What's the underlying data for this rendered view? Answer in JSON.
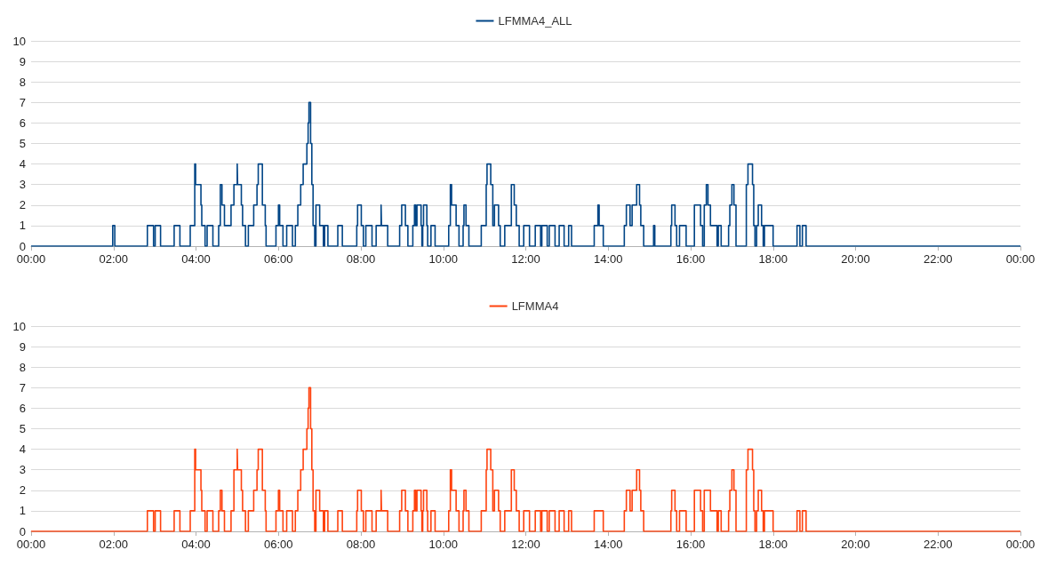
{
  "chart_data": [
    {
      "type": "step",
      "legend": "top",
      "grid": "y",
      "xlim": [
        0,
        24
      ],
      "ylim": [
        0,
        10
      ],
      "yticks": [
        0,
        1,
        2,
        3,
        4,
        5,
        6,
        7,
        8,
        9,
        10
      ],
      "xticks": [
        {
          "value": 0,
          "label": "00:00"
        },
        {
          "value": 2,
          "label": "02:00"
        },
        {
          "value": 4,
          "label": "04:00"
        },
        {
          "value": 6,
          "label": "06:00"
        },
        {
          "value": 8,
          "label": "08:00"
        },
        {
          "value": 10,
          "label": "10:00"
        },
        {
          "value": 12,
          "label": "12:00"
        },
        {
          "value": 14,
          "label": "14:00"
        },
        {
          "value": 16,
          "label": "16:00"
        },
        {
          "value": 18,
          "label": "18:00"
        },
        {
          "value": 20,
          "label": "20:00"
        },
        {
          "value": 22,
          "label": "22:00"
        },
        {
          "value": 24,
          "label": "00:00"
        }
      ],
      "x": [
        0,
        1.98,
        2.03,
        2.82,
        2.97,
        3.01,
        3.14,
        3.47,
        3.61,
        3.86,
        3.97,
        3.99,
        4.12,
        4.14,
        4.22,
        4.27,
        4.41,
        4.55,
        4.59,
        4.63,
        4.69,
        4.85,
        4.92,
        5.0,
        5.01,
        5.1,
        5.13,
        5.2,
        5.27,
        5.4,
        5.48,
        5.51,
        5.61,
        5.68,
        5.7,
        5.94,
        6.0,
        6.03,
        6.11,
        6.2,
        6.34,
        6.41,
        6.47,
        6.54,
        6.6,
        6.69,
        6.72,
        6.74,
        6.78,
        6.81,
        6.84,
        6.88,
        6.91,
        7.0,
        7.09,
        7.12,
        7.2,
        7.44,
        7.55,
        7.9,
        7.92,
        8.01,
        8.06,
        8.12,
        8.27,
        8.37,
        8.49,
        8.5,
        8.65,
        8.94,
        8.99,
        9.08,
        9.14,
        9.26,
        9.3,
        9.33,
        9.36,
        9.46,
        9.48,
        9.5,
        9.52,
        9.6,
        9.62,
        9.7,
        9.8,
        10.13,
        10.17,
        10.2,
        10.31,
        10.38,
        10.48,
        10.5,
        10.55,
        10.62,
        10.92,
        11.04,
        11.06,
        11.15,
        11.2,
        11.24,
        11.34,
        11.38,
        11.49,
        11.65,
        11.72,
        11.77,
        11.84,
        11.95,
        12.09,
        12.23,
        12.36,
        12.39,
        12.52,
        12.57,
        12.71,
        12.81,
        12.93,
        13.04,
        13.11,
        13.66,
        13.75,
        13.78,
        13.88,
        14.39,
        14.44,
        14.53,
        14.58,
        14.69,
        14.76,
        14.79,
        14.86,
        15.1,
        15.13,
        15.52,
        15.54,
        15.62,
        15.66,
        15.73,
        15.89,
        16.09,
        16.24,
        16.29,
        16.33,
        16.38,
        16.42,
        16.48,
        16.64,
        16.67,
        16.74,
        16.92,
        16.95,
        17.0,
        17.05,
        17.1,
        17.35,
        17.39,
        17.5,
        17.53,
        17.56,
        17.6,
        17.64,
        17.72,
        17.76,
        17.79,
        18.0,
        18.58,
        18.65,
        18.71,
        18.8,
        24
      ],
      "series": [
        {
          "name": "LFMMA4_ALL",
          "color": "#004586",
          "values": [
            0,
            1,
            0,
            1,
            0,
            1,
            0,
            1,
            0,
            1,
            4,
            3,
            2,
            1,
            0,
            1,
            0,
            1,
            3,
            2,
            1,
            2,
            3,
            4,
            3,
            2,
            1,
            0,
            1,
            2,
            3,
            4,
            2,
            1,
            0,
            1,
            2,
            1,
            0,
            1,
            0,
            1,
            2,
            3,
            4,
            5,
            6,
            7,
            5,
            3,
            1,
            0,
            2,
            1,
            0,
            1,
            0,
            1,
            0,
            1,
            2,
            1,
            0,
            1,
            0,
            1,
            2,
            1,
            0,
            1,
            2,
            1,
            0,
            1,
            2,
            1,
            2,
            1,
            0,
            1,
            2,
            1,
            0,
            1,
            0,
            1,
            3,
            2,
            1,
            0,
            1,
            2,
            1,
            0,
            1,
            3,
            4,
            3,
            1,
            2,
            1,
            0,
            1,
            3,
            2,
            1,
            0,
            1,
            0,
            1,
            0,
            1,
            0,
            1,
            0,
            1,
            0,
            1,
            0,
            1,
            2,
            1,
            0,
            1,
            2,
            1,
            2,
            3,
            2,
            1,
            0,
            1,
            0,
            1,
            2,
            1,
            0,
            1,
            0,
            2,
            1,
            0,
            2,
            3,
            2,
            1,
            0,
            1,
            0,
            1,
            2,
            3,
            2,
            0,
            3,
            4,
            3,
            1,
            0,
            1,
            2,
            1,
            0,
            1,
            0,
            1,
            0,
            1,
            0,
            0
          ]
        }
      ]
    },
    {
      "type": "step",
      "legend": "top",
      "grid": "y",
      "xlim": [
        0,
        24
      ],
      "ylim": [
        0,
        10
      ],
      "yticks": [
        0,
        1,
        2,
        3,
        4,
        5,
        6,
        7,
        8,
        9,
        10
      ],
      "xticks": [
        {
          "value": 0,
          "label": "00:00"
        },
        {
          "value": 2,
          "label": "02:00"
        },
        {
          "value": 4,
          "label": "04:00"
        },
        {
          "value": 6,
          "label": "06:00"
        },
        {
          "value": 8,
          "label": "08:00"
        },
        {
          "value": 10,
          "label": "10:00"
        },
        {
          "value": 12,
          "label": "12:00"
        },
        {
          "value": 14,
          "label": "14:00"
        },
        {
          "value": 16,
          "label": "16:00"
        },
        {
          "value": 18,
          "label": "18:00"
        },
        {
          "value": 20,
          "label": "20:00"
        },
        {
          "value": 22,
          "label": "22:00"
        },
        {
          "value": 24,
          "label": "00:00"
        }
      ],
      "x": [
        0,
        2.82,
        2.97,
        3.01,
        3.14,
        3.47,
        3.61,
        3.86,
        3.97,
        3.99,
        4.12,
        4.14,
        4.22,
        4.27,
        4.41,
        4.55,
        4.59,
        4.63,
        4.69,
        4.85,
        4.92,
        5.0,
        5.01,
        5.1,
        5.13,
        5.2,
        5.27,
        5.4,
        5.48,
        5.51,
        5.61,
        5.68,
        5.7,
        5.94,
        6.0,
        6.03,
        6.11,
        6.2,
        6.34,
        6.41,
        6.47,
        6.54,
        6.6,
        6.69,
        6.72,
        6.74,
        6.78,
        6.81,
        6.84,
        6.88,
        6.91,
        7.0,
        7.09,
        7.12,
        7.2,
        7.44,
        7.55,
        7.9,
        7.92,
        8.01,
        8.06,
        8.12,
        8.27,
        8.37,
        8.49,
        8.5,
        8.65,
        8.94,
        8.99,
        9.08,
        9.14,
        9.26,
        9.3,
        9.33,
        9.36,
        9.46,
        9.48,
        9.5,
        9.52,
        9.6,
        9.62,
        9.7,
        9.8,
        10.13,
        10.17,
        10.2,
        10.31,
        10.38,
        10.48,
        10.5,
        10.55,
        10.62,
        10.92,
        11.04,
        11.06,
        11.15,
        11.2,
        11.24,
        11.34,
        11.38,
        11.49,
        11.65,
        11.72,
        11.77,
        11.84,
        11.95,
        12.09,
        12.23,
        12.36,
        12.39,
        12.52,
        12.57,
        12.71,
        12.81,
        12.93,
        13.04,
        13.11,
        13.66,
        13.88,
        14.39,
        14.44,
        14.53,
        14.58,
        14.69,
        14.76,
        14.79,
        14.86,
        15.52,
        15.54,
        15.62,
        15.66,
        15.73,
        15.89,
        16.09,
        16.24,
        16.29,
        16.33,
        16.42,
        16.48,
        16.64,
        16.67,
        16.74,
        16.92,
        16.95,
        17.0,
        17.05,
        17.1,
        17.35,
        17.39,
        17.5,
        17.53,
        17.56,
        17.6,
        17.64,
        17.72,
        17.76,
        17.79,
        18.0,
        18.58,
        18.65,
        18.71,
        18.8,
        24
      ],
      "series": [
        {
          "name": "LFMMA4",
          "color": "#ff420e",
          "values": [
            0,
            1,
            0,
            1,
            0,
            1,
            0,
            1,
            4,
            3,
            2,
            1,
            0,
            1,
            0,
            1,
            2,
            1,
            0,
            1,
            3,
            4,
            3,
            2,
            1,
            0,
            1,
            2,
            3,
            4,
            2,
            1,
            0,
            1,
            2,
            1,
            0,
            1,
            0,
            1,
            2,
            3,
            4,
            5,
            6,
            7,
            5,
            3,
            1,
            0,
            2,
            1,
            0,
            1,
            0,
            1,
            0,
            1,
            2,
            1,
            0,
            1,
            0,
            1,
            2,
            1,
            0,
            1,
            2,
            1,
            0,
            1,
            2,
            1,
            2,
            1,
            0,
            1,
            2,
            1,
            0,
            1,
            0,
            1,
            3,
            2,
            1,
            0,
            1,
            2,
            1,
            0,
            1,
            3,
            4,
            3,
            1,
            2,
            1,
            0,
            1,
            3,
            2,
            1,
            0,
            1,
            0,
            1,
            0,
            1,
            0,
            1,
            0,
            1,
            0,
            1,
            0,
            1,
            0,
            1,
            2,
            1,
            2,
            3,
            2,
            1,
            0,
            1,
            2,
            1,
            0,
            1,
            0,
            2,
            1,
            0,
            2,
            2,
            1,
            0,
            1,
            0,
            1,
            2,
            3,
            2,
            0,
            3,
            4,
            3,
            1,
            0,
            1,
            2,
            1,
            0,
            1,
            0,
            1,
            0,
            1,
            0,
            0
          ]
        }
      ]
    }
  ]
}
